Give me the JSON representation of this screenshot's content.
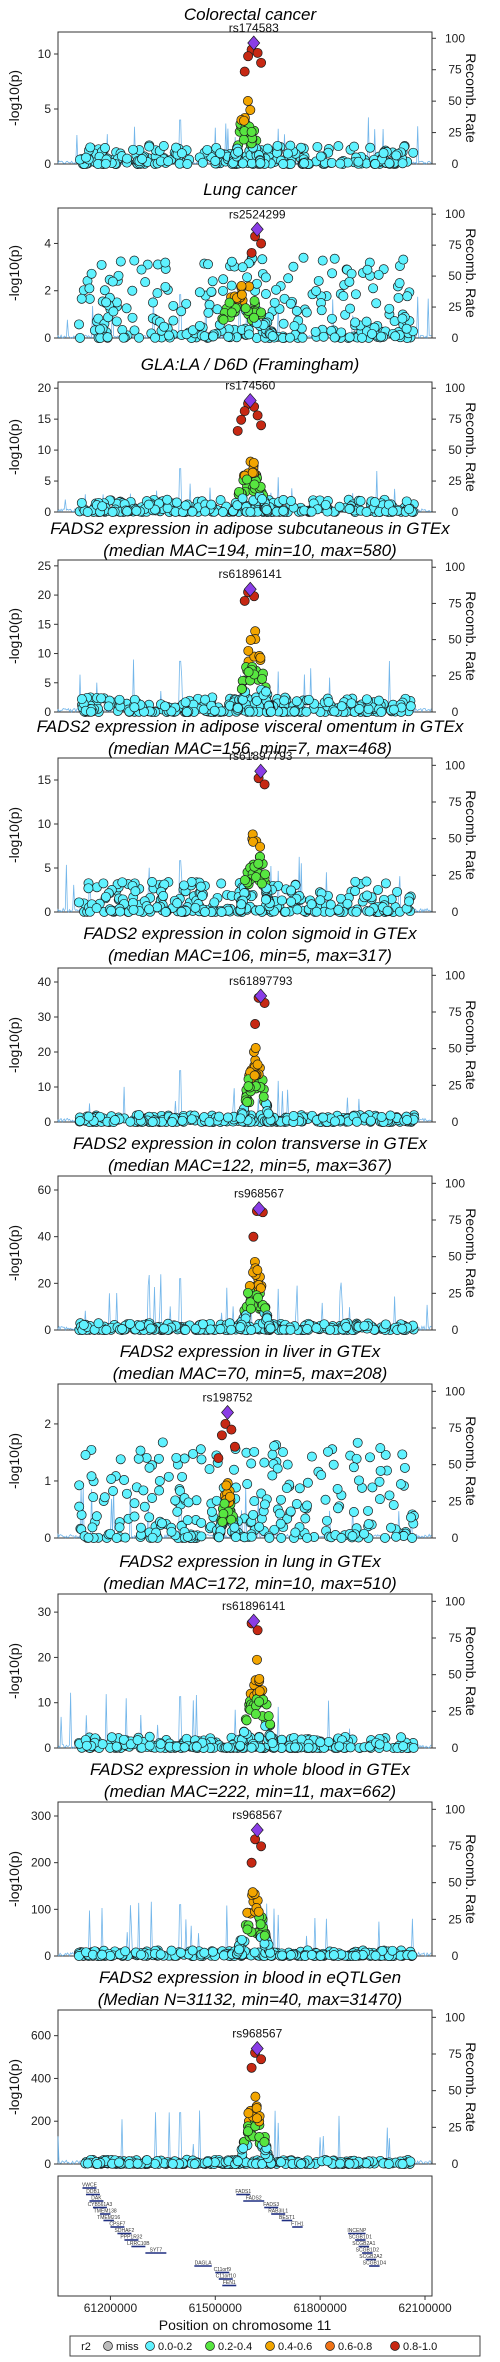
{
  "legend": {
    "title": "r2",
    "items": [
      {
        "label": "miss",
        "color": "#bdbdbd"
      },
      {
        "label": "0.0-0.2",
        "color": "#5ff2ff"
      },
      {
        "label": "0.2-0.4",
        "color": "#57e640"
      },
      {
        "label": "0.4-0.6",
        "color": "#f2a500"
      },
      {
        "label": "0.6-0.8",
        "color": "#f07216"
      },
      {
        "label": "0.8-1.0",
        "color": "#c62813"
      }
    ],
    "lead_color": "#8a3de6",
    "recomb_color": "#5aa9e6"
  },
  "shared_axes": {
    "y_label": "-log10(p)",
    "y2_label": "Recomb. Rate",
    "y2_ticks": [
      0,
      25,
      50,
      75,
      100
    ],
    "x_label": "Position on chromosome 11",
    "x_ticks": [
      61200000,
      61500000,
      61800000,
      62100000
    ],
    "xlim": [
      61050000,
      62120000
    ]
  },
  "chart_data": [
    {
      "type": "scatter",
      "title_line1": "Colorectal cancer",
      "title_line2": "",
      "lead_snp": "rs174583",
      "lead_x": 61610000,
      "lead_y": 11.0,
      "ylim": [
        0,
        12
      ],
      "y_ticks": [
        0,
        5,
        10
      ],
      "peak_center": 61590000,
      "peak_width": 40000,
      "background_max": 1.8,
      "top_hits": [
        10.4,
        10.1,
        9.8,
        9.2,
        8.4
      ]
    },
    {
      "type": "scatter",
      "title_line1": "Lung cancer",
      "title_line2": "",
      "lead_snp": "rs2524299",
      "lead_x": 61620000,
      "lead_y": 4.6,
      "ylim": [
        0,
        5.5
      ],
      "y_ticks": [
        0,
        2,
        4
      ],
      "peak_center": 61580000,
      "peak_width": 90000,
      "background_max": 3.4,
      "top_hits": [
        4.3,
        4.0,
        3.6
      ]
    },
    {
      "type": "scatter",
      "title_line1": "GLA:LA / D6D (Framingham)",
      "title_line2": "",
      "lead_snp": "rs174560",
      "lead_x": 61600000,
      "lead_y": 18.0,
      "ylim": [
        0,
        21
      ],
      "y_ticks": [
        0,
        5,
        10,
        15,
        20
      ],
      "peak_center": 61600000,
      "peak_width": 50000,
      "background_max": 2.0,
      "top_hits": [
        17.5,
        17.0,
        16.3,
        15.6,
        14.9,
        14.0,
        13.1
      ]
    },
    {
      "type": "scatter",
      "title_line1": "FADS2 expression in adipose subcutaneous in GTEx",
      "title_line2": "(median MAC=194, min=10, max=580)",
      "lead_snp": "rs61896141",
      "lead_x": 61600000,
      "lead_y": 21.0,
      "ylim": [
        0,
        26
      ],
      "y_ticks": [
        0,
        5,
        10,
        15,
        20,
        25
      ],
      "peak_center": 61610000,
      "peak_width": 50000,
      "background_max": 2.5,
      "top_hits": [
        20.5,
        19.8,
        19.0
      ]
    },
    {
      "type": "scatter",
      "title_line1": "FADS2 expression in adipose visceral omentum in GTEx",
      "title_line2": "(median MAC=156, min=7, max=468)",
      "lead_snp": "rs61897793",
      "lead_x": 61630000,
      "lead_y": 16.0,
      "ylim": [
        0,
        17.5
      ],
      "y_ticks": [
        0,
        5,
        10,
        15
      ],
      "peak_center": 61615000,
      "peak_width": 45000,
      "background_max": 3.5,
      "top_hits": [
        15.2,
        14.5
      ]
    },
    {
      "type": "scatter",
      "title_line1": "FADS2 expression in colon sigmoid in GTEx",
      "title_line2": "(median MAC=106, min=5, max=317)",
      "lead_snp": "rs61897793",
      "lead_x": 61630000,
      "lead_y": 36.0,
      "ylim": [
        0,
        44
      ],
      "y_ticks": [
        0,
        10,
        20,
        30,
        40
      ],
      "peak_center": 61615000,
      "peak_width": 45000,
      "background_max": 2.0,
      "top_hits": [
        35.5,
        34.0,
        28.0
      ]
    },
    {
      "type": "scatter",
      "title_line1": "FADS2 expression in colon transverse in GTEx",
      "title_line2": "(median MAC=122, min=5, max=367)",
      "lead_snp": "rs968567",
      "lead_x": 61625000,
      "lead_y": 52.0,
      "ylim": [
        0,
        66
      ],
      "y_ticks": [
        0,
        20,
        40,
        60
      ],
      "peak_center": 61615000,
      "peak_width": 45000,
      "background_max": 3.0,
      "top_hits": [
        51.0,
        50.5,
        40.0
      ]
    },
    {
      "type": "scatter",
      "title_line1": "FADS2 expression in liver in GTEx",
      "title_line2": "(median MAC=70, min=5, max=208)",
      "lead_snp": "rs198752",
      "lead_x": 61535000,
      "lead_y": 2.2,
      "ylim": [
        0,
        2.7
      ],
      "y_ticks": [
        0,
        1,
        2
      ],
      "peak_center": 61535000,
      "peak_width": 25000,
      "background_max": 1.7,
      "top_hits": [
        2.0,
        1.9,
        1.8,
        1.6,
        1.4
      ]
    },
    {
      "type": "scatter",
      "title_line1": "FADS2 expression in lung in GTEx",
      "title_line2": "(median MAC=172, min=10, max=510)",
      "lead_snp": "rs61896141",
      "lead_x": 61610000,
      "lead_y": 28.0,
      "ylim": [
        0,
        34
      ],
      "y_ticks": [
        0,
        10,
        20,
        30
      ],
      "peak_center": 61620000,
      "peak_width": 50000,
      "background_max": 2.5,
      "top_hits": [
        27.5,
        26.0
      ]
    },
    {
      "type": "scatter",
      "title_line1": "FADS2 expression in whole blood in GTEx",
      "title_line2": "(median MAC=222, min=11, max=662)",
      "lead_snp": "rs968567",
      "lead_x": 61620000,
      "lead_y": 270.0,
      "ylim": [
        0,
        330
      ],
      "y_ticks": [
        0,
        100,
        200,
        300
      ],
      "peak_center": 61610000,
      "peak_width": 50000,
      "background_max": 12.0,
      "top_hits": [
        250.0,
        235.0,
        200.0
      ]
    },
    {
      "type": "scatter",
      "title_line1": "FADS2 expression in blood in eQTLGen",
      "title_line2": "(Median N=31132, min=40, max=31470)",
      "lead_snp": "rs968567",
      "lead_x": 61620000,
      "lead_y": 540.0,
      "ylim": [
        0,
        720
      ],
      "y_ticks": [
        0,
        200,
        400,
        600
      ],
      "peak_center": 61610000,
      "peak_width": 50000,
      "background_max": 20.0,
      "top_hits": [
        520.0,
        490.0,
        450.0
      ]
    }
  ],
  "genes": [
    {
      "name": "VWCE",
      "start": 61120000,
      "end": 61160000,
      "row": 0
    },
    {
      "name": "DDB1",
      "start": 61130000,
      "end": 61170000,
      "row": 1
    },
    {
      "name": "DAK",
      "start": 61140000,
      "end": 61180000,
      "row": 2
    },
    {
      "name": "CYB561A3",
      "start": 61150000,
      "end": 61190000,
      "row": 3
    },
    {
      "name": "TMEM138",
      "start": 61170000,
      "end": 61200000,
      "row": 4
    },
    {
      "name": "TMEM216",
      "start": 61180000,
      "end": 61210000,
      "row": 5
    },
    {
      "name": "CPSF7",
      "start": 61200000,
      "end": 61240000,
      "row": 6
    },
    {
      "name": "SDHAF2",
      "start": 61220000,
      "end": 61260000,
      "row": 7
    },
    {
      "name": "PPP1R32",
      "start": 61240000,
      "end": 61280000,
      "row": 8
    },
    {
      "name": "LRRC10B",
      "start": 61260000,
      "end": 61300000,
      "row": 9
    },
    {
      "name": "SYT7",
      "start": 61300000,
      "end": 61360000,
      "row": 10
    },
    {
      "name": "DAGLA",
      "start": 61440000,
      "end": 61490000,
      "row": 12
    },
    {
      "name": "C11orf9",
      "start": 61500000,
      "end": 61540000,
      "row": 13
    },
    {
      "name": "C11orf10",
      "start": 61510000,
      "end": 61550000,
      "row": 14
    },
    {
      "name": "FEN1",
      "start": 61520000,
      "end": 61560000,
      "row": 15
    },
    {
      "name": "FADS1",
      "start": 61560000,
      "end": 61600000,
      "row": 1
    },
    {
      "name": "FADS2",
      "start": 61580000,
      "end": 61640000,
      "row": 2
    },
    {
      "name": "FADS3",
      "start": 61640000,
      "end": 61680000,
      "row": 3
    },
    {
      "name": "RAB3IL1",
      "start": 61660000,
      "end": 61700000,
      "row": 4
    },
    {
      "name": "BEST1",
      "start": 61690000,
      "end": 61720000,
      "row": 5
    },
    {
      "name": "FTH1",
      "start": 61720000,
      "end": 61750000,
      "row": 6
    },
    {
      "name": "INCENP",
      "start": 61880000,
      "end": 61930000,
      "row": 7
    },
    {
      "name": "SCGB1D1",
      "start": 61900000,
      "end": 61930000,
      "row": 8
    },
    {
      "name": "SCGB2A1",
      "start": 61910000,
      "end": 61940000,
      "row": 9
    },
    {
      "name": "SCGB1D2",
      "start": 61920000,
      "end": 61950000,
      "row": 10
    },
    {
      "name": "SCGB2A2",
      "start": 61930000,
      "end": 61960000,
      "row": 11
    },
    {
      "name": "SCGB1D4",
      "start": 61940000,
      "end": 61970000,
      "row": 12
    }
  ]
}
